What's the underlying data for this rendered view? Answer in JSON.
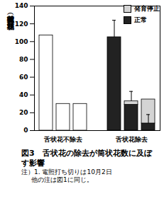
{
  "chart_data": {
    "type": "bar",
    "title": "図3　舌状花の除去が筒状花数に及ぼす影響",
    "notes": [
      "注）1. 電照打ち切りは10月2日",
      "他の注は図1に同じ。"
    ],
    "y_label": "筒状花数（個／頭状花序）",
    "categories": [
      null,
      "舌状花不除去",
      null,
      null,
      null,
      "舌状花除去",
      null
    ],
    "series": [
      {
        "name": null,
        "color": "#ffffff",
        "values": [
          107,
          30,
          30,
          null,
          null,
          null,
          null
        ],
        "errors": [
          null,
          null,
          null,
          null,
          null,
          null,
          null
        ]
      },
      {
        "name": "正常",
        "color": "#222222",
        "values": [
          null,
          null,
          null,
          null,
          105,
          29,
          8
        ],
        "errors": [
          null,
          null,
          null,
          null,
          19,
          null,
          10
        ]
      },
      {
        "name": "発育停止",
        "color": "#d4d4d4",
        "values": [
          null,
          null,
          null,
          null,
          null,
          4,
          27
        ],
        "errors": [
          null,
          null,
          null,
          null,
          null,
          11,
          null
        ]
      }
    ],
    "stacked": true,
    "legend": "top-right",
    "ylim": [
      0,
      140
    ],
    "yticks": [
      0,
      20,
      40,
      60,
      80,
      100,
      120,
      140
    ]
  }
}
